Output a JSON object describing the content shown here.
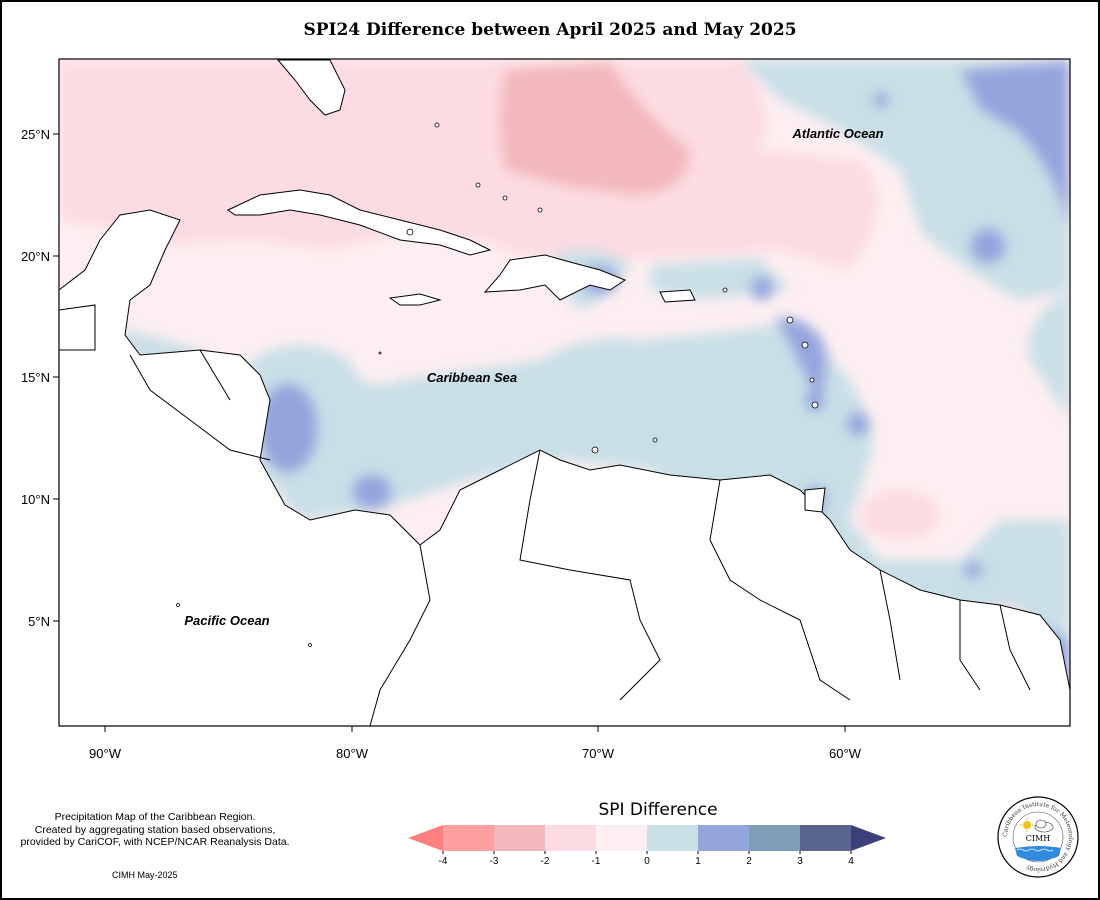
{
  "title": "SPI24 Difference between April 2025 and May 2025",
  "lat_labels": [
    "25°N",
    "20°N",
    "15°N",
    "10°N",
    "5°N"
  ],
  "lon_labels": [
    "90°W",
    "80°W",
    "70°W",
    "60°W"
  ],
  "ocean_labels": {
    "atlantic": "Atlantic Ocean",
    "caribbean": "Caribbean Sea",
    "pacific": "Pacific Ocean"
  },
  "credits": [
    "Precipitation Map of the Caribbean Region.",
    "Created by aggregating station based observations,",
    "provided by CariCOF, with NCEP/NCAR Reanalysis Data."
  ],
  "stamp": "CIMH May-2025",
  "legend": {
    "title": "SPI Difference",
    "ticks": [
      "-4",
      "-3",
      "-2",
      "-1",
      "0",
      "1",
      "2",
      "3",
      "4"
    ],
    "colors": [
      "#ff7f7f",
      "#ff9f9f",
      "#f2b8bc",
      "#fcdbe2",
      "#fdeff1",
      "#c9dfe6",
      "#94a5de",
      "#7e9eb8",
      "#5a6690",
      "#3d3f79"
    ]
  },
  "logo": {
    "text": "CIMH",
    "ring_text": "Caribbean Institute for Meteorology and Hydrology"
  },
  "icons": [
    "sun-icon",
    "cloud-icon",
    "waves-icon"
  ]
}
